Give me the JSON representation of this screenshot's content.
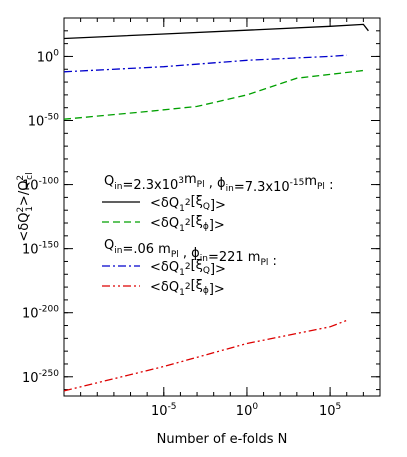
{
  "chart_data": {
    "type": "line",
    "title": "",
    "xlabel": "Number of e-folds N",
    "ylabel": "<δQ₁²>/Qₑₗ²",
    "x_scale": "log",
    "y_scale": "log",
    "xlim": [
      1e-11,
      100000000.0
    ],
    "ylim": [
      1e-265,
      1e+30
    ],
    "grid": false,
    "x_ticks": [
      {
        "value": 1e-05,
        "label": "10⁻⁵"
      },
      {
        "value": 1,
        "label": "10⁰"
      },
      {
        "value": 100000.0,
        "label": "10⁵"
      }
    ],
    "y_ticks": [
      {
        "value": 1,
        "label": "10⁰"
      },
      {
        "value": 1e-50,
        "label": "10⁻⁵⁰"
      },
      {
        "value": 1e-100,
        "label": "10⁻¹⁰⁰"
      },
      {
        "value": 1e-150,
        "label": "10⁻¹⁵⁰"
      },
      {
        "value": 1e-200,
        "label": "10⁻²⁰⁰"
      },
      {
        "value": 1e-250,
        "label": "10⁻²⁵⁰"
      }
    ],
    "legend_groups": [
      {
        "header": "Q_in=2.3x10³m_Pl , ϕ_in=7.3x10⁻¹⁵m_Pl :",
        "entries": [
          {
            "series_index": 0,
            "label": "<δQ₁²[ξ_Q]>"
          },
          {
            "series_index": 1,
            "label": "<δQ₁²[ξ_ϕ]>"
          }
        ]
      },
      {
        "header": "Q_in=.06 m_Pl , ϕ_in=221 m_Pl :",
        "entries": [
          {
            "series_index": 2,
            "label": "<δQ₁²[ξ_Q]>"
          },
          {
            "series_index": 3,
            "label": "<δQ₁²[ξ_ϕ]>"
          }
        ]
      }
    ],
    "series": [
      {
        "color": "#000000",
        "dash": "solid",
        "x": [
          1e-11,
          1e-05,
          1,
          100000.0,
          10000000.0,
          20000000.0
        ],
        "y_exp": [
          14,
          17.5,
          20.5,
          23.5,
          25,
          20
        ]
      },
      {
        "color": "#00a000",
        "dash": "dashed",
        "x": [
          1e-11,
          1e-06,
          0.001,
          1,
          1000.0,
          100000.0,
          10000000.0
        ],
        "y_exp": [
          -49,
          -43,
          -39,
          -30,
          -17,
          -14,
          -11
        ]
      },
      {
        "color": "#0000cc",
        "dash": "dashdot",
        "x": [
          1e-11,
          1e-05,
          1,
          100000.0,
          1000000.0
        ],
        "y_exp": [
          -12,
          -8,
          -3,
          0,
          1
        ]
      },
      {
        "color": "#dd0000",
        "dash": "dashdotdot",
        "x": [
          1e-11,
          1e-05,
          1,
          100000.0,
          1000000.0
        ],
        "y_exp": [
          -261,
          -242,
          -224,
          -211,
          -206
        ]
      }
    ]
  }
}
